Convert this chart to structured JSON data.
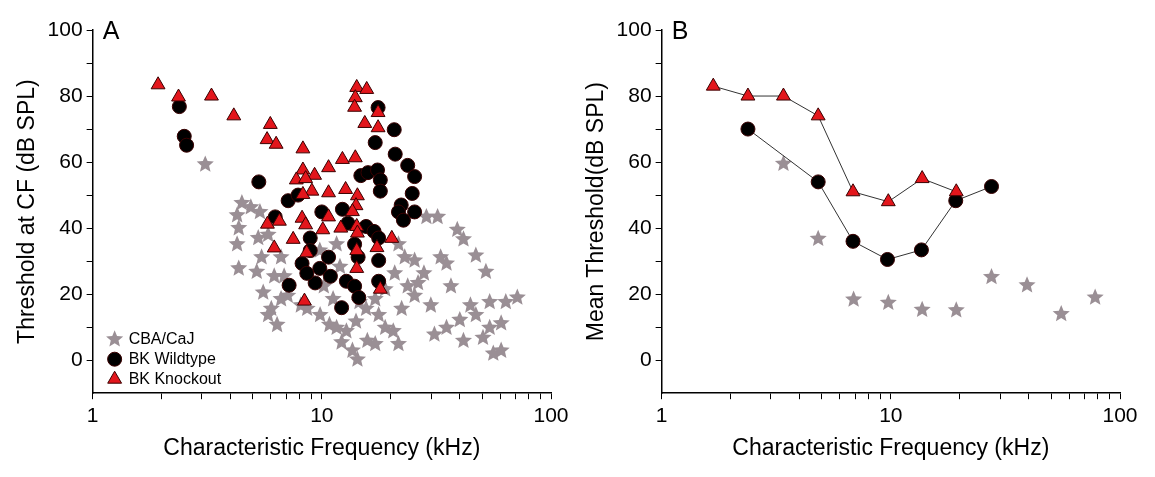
{
  "chart_data": [
    {
      "type": "scatter",
      "title": "A",
      "xlabel": "Characteristic Frequency (kHz)",
      "ylabel": "Threshold at CF (dB SPL)",
      "log": "x",
      "grid": false,
      "legend": "bottom left",
      "xlim": [
        1,
        100
      ],
      "ylim": [
        -10,
        100
      ],
      "xticks": [
        1,
        {
          "value": 2,
          "label": null
        },
        {
          "value": 3,
          "label": null
        },
        {
          "value": 4,
          "label": null
        },
        {
          "value": 5,
          "label": null
        },
        {
          "value": 6,
          "label": null
        },
        {
          "value": 7,
          "label": null
        },
        {
          "value": 8,
          "label": null
        },
        {
          "value": 9,
          "label": null
        },
        10,
        {
          "value": 20,
          "label": null
        },
        {
          "value": 30,
          "label": null
        },
        {
          "value": 40,
          "label": null
        },
        {
          "value": 50,
          "label": null
        },
        {
          "value": 60,
          "label": null
        },
        {
          "value": 70,
          "label": null
        },
        {
          "value": 80,
          "label": null
        },
        {
          "value": 90,
          "label": null
        },
        100
      ],
      "yticks": [
        0,
        {
          "value": 10,
          "label": null
        },
        20,
        {
          "value": 30,
          "label": null
        },
        40,
        {
          "value": 50,
          "label": null
        },
        60,
        {
          "value": 70,
          "label": null
        },
        80,
        {
          "value": 90,
          "label": null
        },
        100
      ],
      "series": [
        {
          "name": "CBA/CaJ",
          "color": "#9a8f95",
          "marker": "star",
          "x": [
            3.1,
            4.48,
            4.9,
            5.37,
            4.27,
            4.34,
            4.27,
            4.34,
            5.28,
            5.46,
            5.2,
            5.55,
            6.02,
            6.38,
            6.64,
            6.85,
            6.64,
            8.63,
            9.83,
            10.8,
            12.2,
            14.3,
            13.6,
            12.8,
            14.1,
            15.6,
            17.1,
            18.9,
            21.6,
            20.5,
            22.3,
            25.4,
            27.9,
            29.9,
            33,
            28.6,
            32,
            40,
            47,
            52,
            47,
            39,
            41.5,
            54,
            54,
            56,
            60.6,
            60.6,
            63.5,
            71.3,
            44.5,
            36.6,
            35,
            23,
            20.8,
            18.9,
            23.7,
            26.3,
            21.6,
            25.4,
            17.1,
            14.6,
            11.2,
            10.2,
            12,
            11.6,
            9.8,
            11.6,
            17.7,
            15.8,
            5.83,
            6.2,
            5.83,
            8.1,
            7.1,
            35,
            31,
            50.5,
            41.5
          ],
          "values": [
            59.3,
            47.6,
            46.3,
            44.9,
            43.9,
            40,
            35.1,
            27.8,
            37,
            31.2,
            26.8,
            20.5,
            15.6,
            10.7,
            18.5,
            25.4,
            31.2,
            15.6,
            13.7,
            10.7,
            5.4,
            0.2,
            2.9,
            8.8,
            11.7,
            15.6,
            4.9,
            9.8,
            4.9,
            8.8,
            15.6,
            19.5,
            26.3,
            16.6,
            31.2,
            43.4,
            43.4,
            12.2,
            13.7,
            26.8,
            31.7,
            39.5,
            36.6,
            17.6,
            9.8,
            2,
            2.9,
            11.2,
            17.6,
            19,
            16.6,
            22.4,
            29.3,
            31.2,
            26.3,
            21.5,
            22.4,
            23.4,
            35.1,
            30.2,
            18.5,
            17.6,
            18.5,
            22.4,
            28.3,
            35.1,
            33.2,
            9.8,
            13.7,
            5.9,
            13.7,
            25.4,
            38,
            16.6,
            19.5,
            9.8,
            7.8,
            6.8,
            5.9
          ]
        },
        {
          "name": "BK Wildtype",
          "color": "#000000",
          "marker": "circle",
          "x": [
            2.39,
            2.51,
            2.57,
            5.31,
            7.13,
            7.88,
            6.26,
            17.6,
            17.1,
            20.7,
            20.9,
            23.7,
            25.4,
            14.8,
            15.9,
            17.5,
            18,
            18,
            24.8,
            22.2,
            21.6,
            22.7,
            25.4,
            10,
            12.3,
            13,
            15.6,
            16.9,
            17.7,
            8.9,
            8.9,
            10.7,
            8.2,
            9.8,
            13.9,
            14.4,
            10.9,
            9.35,
            7.2,
            12.8,
            13.9,
            14.5,
            12.2,
            17.7,
            17.7,
            8.6
          ],
          "values": [
            76.8,
            67.8,
            65.1,
            54,
            48.3,
            50,
            43.4,
            76.5,
            65.9,
            69.8,
            62.4,
            59,
            55.6,
            55.9,
            56.8,
            57.6,
            54.6,
            51.2,
            50.5,
            47,
            44.9,
            42.4,
            44.9,
            44.9,
            45.7,
            41.5,
            40.5,
            39,
            37,
            37,
            33.2,
            31.2,
            29.3,
            27.8,
            35.1,
            31.2,
            25.4,
            23.4,
            22.7,
            23.9,
            22.4,
            19,
            15.9,
            30.2,
            23.9,
            26.3
          ]
        },
        {
          "name": "BK Knockout",
          "color": "#e3161c",
          "marker": "triangle",
          "x": [
            1.93,
            2.37,
            3.3,
            4.13,
            5.96,
            5.77,
            6.32,
            8.27,
            14.2,
            15.7,
            14,
            13.9,
            17.6,
            15.4,
            17.6,
            12.3,
            14,
            10.7,
            8.27,
            9.3,
            7.74,
            8.5,
            9.05,
            10.7,
            12.7,
            8.27,
            14.3,
            14.1,
            13.6,
            5.79,
            6.53,
            8.2,
            10.7,
            8.5,
            10.1,
            12.1,
            14.2,
            14.3,
            7.5,
            20.2,
            6.2,
            8.59,
            14.2,
            17.4,
            14.2,
            18,
            8.4
          ],
          "values": [
            83.4,
            79.7,
            80,
            74,
            71.4,
            66.8,
            65.4,
            64,
            82.6,
            82,
            79.5,
            76.6,
            75,
            71.7,
            70.4,
            60.8,
            61.3,
            58.3,
            57.6,
            56,
            54.6,
            55,
            51.2,
            50.7,
            51.7,
            50.2,
            49.8,
            46.8,
            45,
            41.2,
            42.1,
            43,
            43.4,
            41,
            39.5,
            40,
            40.5,
            38.5,
            36.6,
            36.9,
            34,
            32.5,
            33.2,
            34.1,
            27.8,
            21.5,
            17.9
          ]
        }
      ]
    },
    {
      "type": "line",
      "title": "B",
      "xlabel": "Characteristic Frequency (kHz)",
      "ylabel": "Mean Threshold(dB SPL)",
      "log": "x",
      "grid": false,
      "xlim": [
        1,
        100
      ],
      "ylim": [
        -10,
        100
      ],
      "xticks": [
        1,
        {
          "value": 2,
          "label": null
        },
        {
          "value": 3,
          "label": null
        },
        {
          "value": 4,
          "label": null
        },
        {
          "value": 5,
          "label": null
        },
        {
          "value": 6,
          "label": null
        },
        {
          "value": 7,
          "label": null
        },
        {
          "value": 8,
          "label": null
        },
        {
          "value": 9,
          "label": null
        },
        10,
        {
          "value": 20,
          "label": null
        },
        {
          "value": 30,
          "label": null
        },
        {
          "value": 40,
          "label": null
        },
        {
          "value": 50,
          "label": null
        },
        {
          "value": 60,
          "label": null
        },
        {
          "value": 70,
          "label": null
        },
        {
          "value": 80,
          "label": null
        },
        {
          "value": 90,
          "label": null
        },
        100
      ],
      "yticks": [
        0,
        {
          "value": 10,
          "label": null
        },
        20,
        {
          "value": 30,
          "label": null
        },
        40,
        {
          "value": 50,
          "label": null
        },
        60,
        {
          "value": 70,
          "label": null
        },
        80,
        {
          "value": 90,
          "label": null
        },
        100
      ],
      "series": [
        {
          "type": "scatter",
          "color": "#9a8f95",
          "marker": "star",
          "x": [
            3.4,
            4.82,
            6.88,
            9.75,
            13.7,
            19.3,
            27.5,
            39.3,
            55.4,
            77.9
          ],
          "values": [
            59.5,
            36.8,
            18.4,
            17.4,
            15.3,
            15.1,
            25.2,
            22.7,
            14,
            19
          ]
        },
        {
          "color": "#000000",
          "marker": "circle",
          "x": [
            2.38,
            4.82,
            6.84,
            9.67,
            13.6,
            19.2,
            27.5
          ],
          "values": [
            70,
            54,
            36,
            30.5,
            33.4,
            48.3,
            52.6
          ]
        },
        {
          "color": "#e3161c",
          "marker": "triangle",
          "x": [
            1.68,
            2.38,
            3.4,
            4.82,
            6.84,
            9.75,
            13.7,
            19.3
          ],
          "values": [
            83,
            80,
            80,
            74,
            51,
            48,
            55,
            51
          ]
        }
      ]
    }
  ]
}
